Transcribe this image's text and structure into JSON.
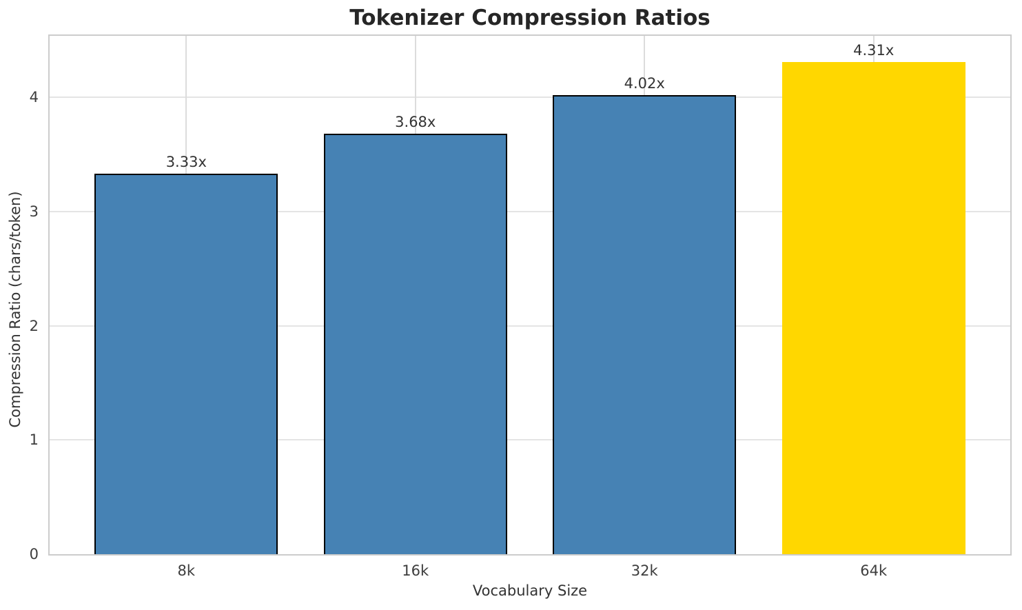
{
  "chart_data": {
    "type": "bar",
    "title": "Tokenizer Compression Ratios",
    "xlabel": "Vocabulary Size",
    "ylabel": "Compression Ratio (chars/token)",
    "categories": [
      "8k",
      "16k",
      "32k",
      "64k"
    ],
    "values": [
      3.33,
      3.68,
      4.02,
      4.31
    ],
    "bar_labels": [
      "3.33x",
      "3.68x",
      "4.02x",
      "4.31x"
    ],
    "yticks": [
      0,
      1,
      2,
      3,
      4
    ],
    "ylim": [
      0,
      4.54
    ],
    "grid": true,
    "legend": "none",
    "default_bar_color": "#4682B4",
    "highlight_bar_color": "#FFD700",
    "bar_colors": [
      "#4682B4",
      "#4682B4",
      "#4682B4",
      "#FFD700"
    ],
    "bar_edge_colors": [
      "#000000",
      "#000000",
      "#000000",
      "none"
    ],
    "grid_color": "#e0e0e0",
    "spine_color": "#cccccc",
    "title_color": "#262626",
    "text_color": "#333333"
  }
}
